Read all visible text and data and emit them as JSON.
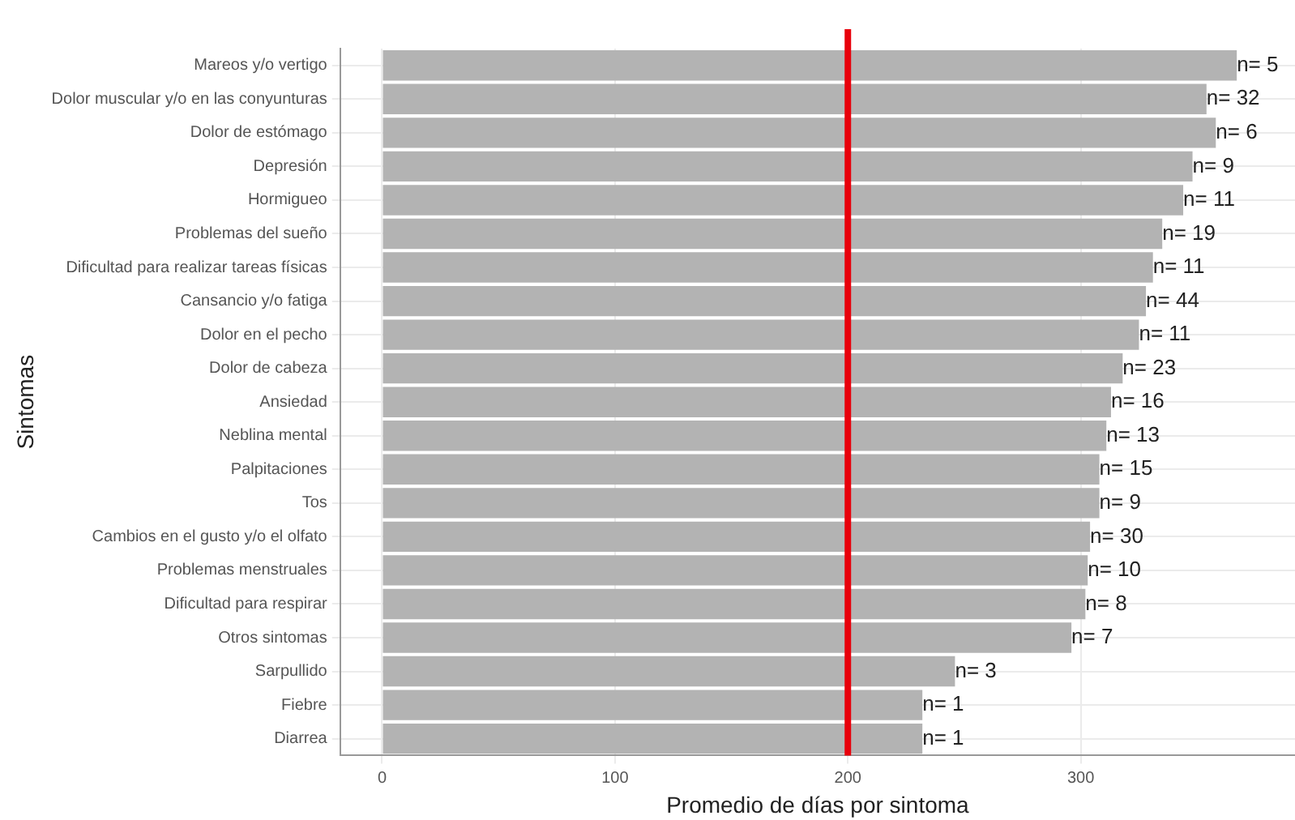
{
  "chart_data": {
    "type": "bar",
    "orientation": "horizontal",
    "xlabel": "Promedio de días por sintoma",
    "ylabel": "Sintomas",
    "categories": [
      "Mareos y/o vertigo",
      "Dolor muscular y/o en las conyunturas",
      "Dolor de estómago",
      "Depresión",
      "Hormigueo",
      "Problemas del sueño",
      "Dificultad para realizar tareas físicas",
      "Cansancio y/o fatiga",
      "Dolor en el pecho",
      "Dolor de cabeza",
      "Ansiedad",
      "Neblina mental",
      "Palpitaciones",
      "Tos",
      "Cambios en el gusto y/o el olfato",
      "Problemas menstruales",
      "Dificultad para respirar",
      "Otros sintomas",
      "Sarpullido",
      "Fiebre",
      "Diarrea"
    ],
    "values": [
      367,
      354,
      358,
      348,
      344,
      335,
      331,
      328,
      325,
      318,
      313,
      311,
      308,
      308,
      304,
      303,
      302,
      296,
      246,
      232,
      232
    ],
    "annotations": [
      {
        "text": "n= 5",
        "x": 367,
        "y": "Mareos y/o vertigo"
      },
      {
        "text": "n= 32",
        "x": 354,
        "y": "Dolor muscular y/o en las conyunturas"
      },
      {
        "text": "n= 6",
        "x": 358,
        "y": "Dolor de estómago"
      },
      {
        "text": "n= 9",
        "x": 348,
        "y": "Depresión"
      },
      {
        "text": "n= 11",
        "x": 344,
        "y": "Hormigueo"
      },
      {
        "text": "n= 19",
        "x": 335,
        "y": "Problemas del sueño"
      },
      {
        "text": "n= 11",
        "x": 331,
        "y": "Dificultad para realizar tareas físicas"
      },
      {
        "text": "n= 44",
        "x": 328,
        "y": "Cansancio y/o fatiga"
      },
      {
        "text": "n= 11",
        "x": 325,
        "y": "Dolor en el pecho"
      },
      {
        "text": "n= 23",
        "x": 318,
        "y": "Dolor de cabeza"
      },
      {
        "text": "n= 16",
        "x": 313,
        "y": "Ansiedad"
      },
      {
        "text": "n= 13",
        "x": 311,
        "y": "Neblina mental"
      },
      {
        "text": "n= 15",
        "x": 308,
        "y": "Palpitaciones"
      },
      {
        "text": "n= 9",
        "x": 308,
        "y": "Tos"
      },
      {
        "text": "n= 30",
        "x": 304,
        "y": "Cambios en el gusto y/o el olfato"
      },
      {
        "text": "n= 10",
        "x": 303,
        "y": "Problemas menstruales"
      },
      {
        "text": "n= 8",
        "x": 302,
        "y": "Dificultad para respirar"
      },
      {
        "text": "n= 7",
        "x": 296,
        "y": "Otros sintomas"
      },
      {
        "text": "n= 3",
        "x": 246,
        "y": "Sarpullido"
      },
      {
        "text": "n= 1",
        "x": 232,
        "y": "Fiebre"
      },
      {
        "text": "n= 1",
        "x": 232,
        "y": "Diarrea"
      }
    ],
    "color": "#b3b3b3",
    "xlim": [
      -18,
      392
    ],
    "xticks": [
      0,
      100,
      200,
      300
    ],
    "ref_lines": [
      {
        "axis": "x",
        "value": 200,
        "color": "#e8000b"
      }
    ],
    "grid": true
  }
}
